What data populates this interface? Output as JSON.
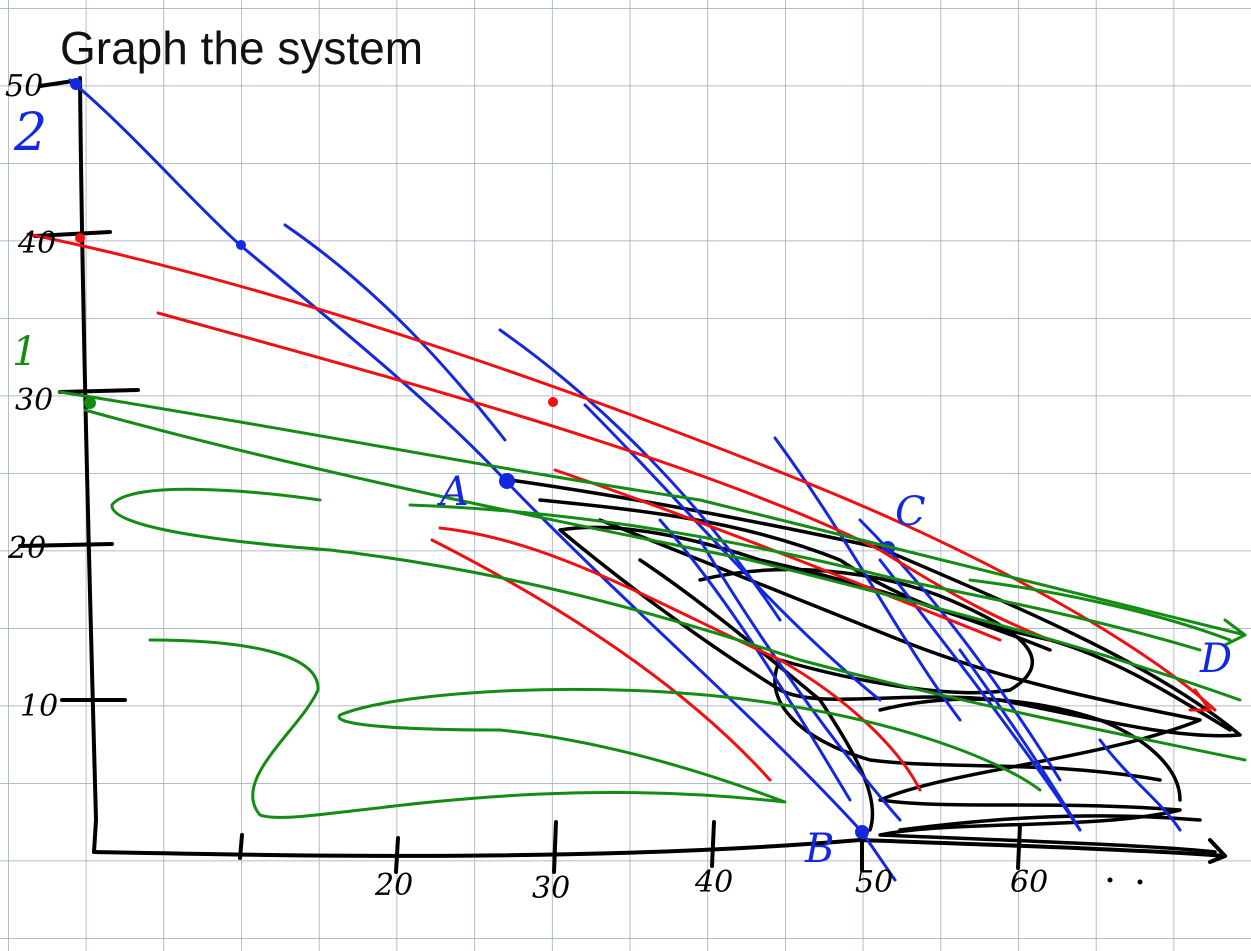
{
  "title": "Graph the system",
  "y_axis_labels": [
    "50",
    "40",
    "30",
    "20",
    "10"
  ],
  "x_axis_labels": [
    "20",
    "30",
    "40",
    "50",
    "60"
  ],
  "line_labels": [
    "2",
    "1"
  ],
  "point_labels": [
    "A",
    "B",
    "C",
    "D"
  ]
}
